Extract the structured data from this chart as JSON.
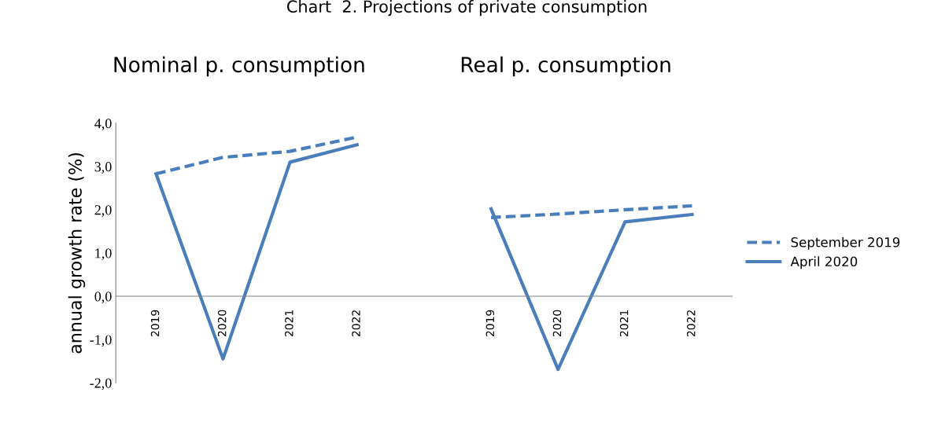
{
  "chart_data": {
    "type": "line",
    "title": "Chart  2. Projections of private consumption",
    "ylabel": "annual growth rate (%)",
    "annotations": [
      "Nominal p. consumption",
      "Real p. consumption"
    ],
    "categories": [
      "2019",
      "2020",
      "2021",
      "2022",
      null,
      "2019",
      "2020",
      "2021",
      "2022"
    ],
    "series": [
      {
        "name": "September 2019",
        "color": "#4a7ebb",
        "line_style": "dashed",
        "values": [
          2.83,
          3.21,
          3.35,
          3.68,
          null,
          1.82,
          1.9,
          2.0,
          2.09
        ]
      },
      {
        "name": "April 2020",
        "color": "#4a7ebb",
        "line_style": "solid",
        "values": [
          2.83,
          -1.45,
          3.1,
          3.5,
          null,
          2.02,
          -1.69,
          1.72,
          1.89
        ]
      }
    ],
    "ylim": [
      -2,
      4
    ],
    "yticks": [
      {
        "value": -2,
        "label": "-2,0"
      },
      {
        "value": -1,
        "label": "-1,0"
      },
      {
        "value": 0,
        "label": "0,0"
      },
      {
        "value": 1,
        "label": "1,0"
      },
      {
        "value": 2,
        "label": "2,0"
      },
      {
        "value": 3,
        "label": "3,0"
      },
      {
        "value": 4,
        "label": "4,0"
      }
    ],
    "grid": false,
    "legend": "right",
    "marker": "none"
  }
}
